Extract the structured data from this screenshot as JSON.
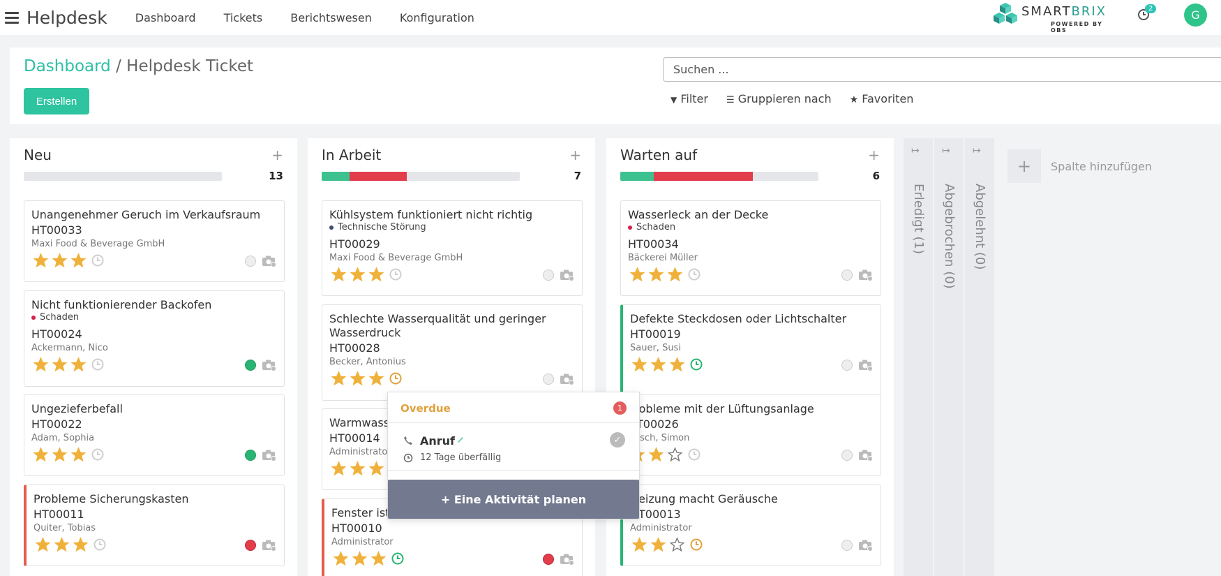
{
  "app": {
    "title": "Helpdesk"
  },
  "menu": [
    "Dashboard",
    "Tickets",
    "Berichtswesen",
    "Konfiguration"
  ],
  "brand": {
    "name_a": "SMART",
    "name_b": "BRIX",
    "sub": "POWERED BY OBS"
  },
  "notifications": {
    "count": "2"
  },
  "user": {
    "initial": "G"
  },
  "breadcrumb": {
    "parent": "Dashboard",
    "sep": " / ",
    "current": "Helpdesk Ticket"
  },
  "create_label": "Erstellen",
  "search": {
    "placeholder": "Suchen ..."
  },
  "filters": {
    "filter": "Filter",
    "group": "Gruppieren nach",
    "fav": "Favoriten"
  },
  "colors": {
    "accent": "#2ec4a0",
    "stage_green": "#3dc28f",
    "stage_red": "#e33d4c",
    "priority_star": "#f0b13a",
    "overdue": "#e0a23e",
    "activity_ok": "#28b573",
    "tag_tech": "#3f4a6e",
    "tag_damage": "#d61f4a"
  },
  "columns": [
    {
      "title": "Neu",
      "count": "13",
      "bar": {
        "green": 0,
        "red": 0
      },
      "cards": [
        {
          "title": "Unangenehmer Geruch im Verkaufsraum",
          "tag": "",
          "tag_color": "",
          "ref": "HT00033",
          "sub": "Maxi Food & Beverage GmbH",
          "stars": 3,
          "clock": "none",
          "dot": "none",
          "border": ""
        },
        {
          "title": "Nicht funktionierender Backofen",
          "tag": "Schaden",
          "tag_color": "#d61f4a",
          "ref": "HT00024",
          "sub": "Ackermann, Nico",
          "stars": 3,
          "clock": "none",
          "dot": "green",
          "border": ""
        },
        {
          "title": "Ungezieferbefall",
          "tag": "",
          "tag_color": "",
          "ref": "HT00022",
          "sub": "Adam, Sophia",
          "stars": 3,
          "clock": "none",
          "dot": "green",
          "border": ""
        },
        {
          "title": "Probleme Sicherungskasten",
          "tag": "",
          "tag_color": "",
          "ref": "HT00011",
          "sub": "Quiter, Tobias",
          "stars": 3,
          "clock": "none",
          "dot": "red",
          "border": "red"
        }
      ]
    },
    {
      "title": "In Arbeit",
      "count": "7",
      "bar": {
        "green": 0.14,
        "red": 0.29
      },
      "cards": [
        {
          "title": "Kühlsystem funktioniert nicht richtig",
          "tag": "Technische Störung",
          "tag_color": "#3f4a6e",
          "ref": "HT00029",
          "sub": "Maxi Food & Beverage GmbH",
          "stars": 3,
          "clock": "none",
          "dot": "none",
          "border": ""
        },
        {
          "title": "Schlechte Wasserqualität und geringer Wasserdruck",
          "tag": "",
          "tag_color": "",
          "ref": "HT00028",
          "sub": "Becker, Antonius",
          "stars": 3,
          "clock": "orange",
          "dot": "none",
          "border": ""
        },
        {
          "title": "Warmwasser",
          "tag": "",
          "tag_color": "",
          "ref": "HT00014",
          "sub": "Administrator",
          "stars": 3,
          "clock": "none",
          "dot": "none",
          "border": ""
        },
        {
          "title": "Fenster ist",
          "tag": "",
          "tag_color": "",
          "ref": "HT00010",
          "sub": "Administrator",
          "stars": 3,
          "clock": "green",
          "dot": "red",
          "border": "red"
        }
      ]
    },
    {
      "title": "Warten auf",
      "count": "6",
      "bar": {
        "green": 0.17,
        "red": 0.5
      },
      "cards": [
        {
          "title": "Wasserleck an der Decke",
          "tag": "Schaden",
          "tag_color": "#d61f4a",
          "ref": "HT00034",
          "sub": "Bäckerei Müller",
          "stars": 3,
          "clock": "none",
          "dot": "none",
          "border": ""
        },
        {
          "title": "Defekte Steckdosen oder Lichtschalter",
          "tag": "",
          "tag_color": "",
          "ref": "HT00019",
          "sub": "Sauer, Susi",
          "stars": 3,
          "clock": "green",
          "dot": "none",
          "border": "green"
        },
        {
          "title": "Probleme mit der Lüftungsanlage",
          "tag": "",
          "tag_color": "",
          "ref": "HT00026",
          "sub": "Busch, Simon",
          "stars": 2,
          "clock": "none",
          "dot": "none",
          "border": ""
        },
        {
          "title": "Heizung macht Geräusche",
          "tag": "",
          "tag_color": "",
          "ref": "HT00013",
          "sub": "Administrator",
          "stars": 2,
          "clock": "orange",
          "dot": "none",
          "border": "green"
        }
      ]
    }
  ],
  "folded": [
    {
      "label": "Erledigt (1)"
    },
    {
      "label": "Abgebrochen (0)"
    },
    {
      "label": "Abgelehnt (0)"
    }
  ],
  "add_column": "Spalte hinzufügen",
  "popup": {
    "title": "Overdue",
    "count": "1",
    "activity": "Anruf",
    "due": "12 Tage überfällig",
    "plan": "+ Eine Aktivität planen"
  }
}
